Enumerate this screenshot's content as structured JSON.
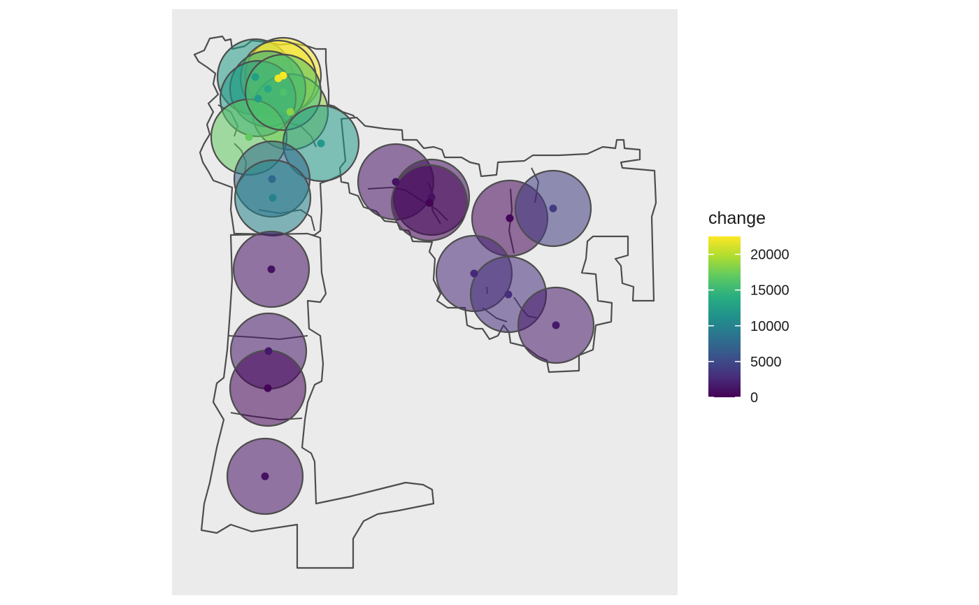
{
  "map": {
    "legend": {
      "title": "change",
      "breaks": [
        "0",
        "5000",
        "10000",
        "15000",
        "20000"
      ],
      "break_values": [
        0,
        5000,
        10000,
        15000,
        20000
      ],
      "range": [
        0,
        22500
      ],
      "palette": [
        "#440154",
        "#472d7b",
        "#3b528b",
        "#2c728e",
        "#21918c",
        "#28ae80",
        "#5ec962",
        "#addc30",
        "#fde725"
      ]
    },
    "panel_color": "#ebebeb",
    "outline_color": "#4d4d4d",
    "sites": [
      {
        "id": "s01",
        "change": 12500
      },
      {
        "id": "s02",
        "change": 22500
      },
      {
        "id": "s03",
        "change": 22000
      },
      {
        "id": "s04",
        "change": 18500
      },
      {
        "id": "s05",
        "change": 13500
      },
      {
        "id": "s06",
        "change": 12000
      },
      {
        "id": "s07",
        "change": 17000
      },
      {
        "id": "s08",
        "change": 16000
      },
      {
        "id": "s09",
        "change": 12000
      },
      {
        "id": "s10",
        "change": 7500
      },
      {
        "id": "s11",
        "change": 10000
      },
      {
        "id": "s12",
        "change": 1000
      },
      {
        "id": "s13",
        "change": 1000
      },
      {
        "id": "s14",
        "change": 100
      },
      {
        "id": "s15",
        "change": 1000
      },
      {
        "id": "s16",
        "change": 1500
      },
      {
        "id": "s17",
        "change": 200
      },
      {
        "id": "s18",
        "change": 200
      },
      {
        "id": "s19",
        "change": 4000
      },
      {
        "id": "s20",
        "change": 2500
      },
      {
        "id": "s21",
        "change": 3000
      },
      {
        "id": "s22",
        "change": 1500
      },
      {
        "id": "s23",
        "change": 1000
      }
    ]
  }
}
